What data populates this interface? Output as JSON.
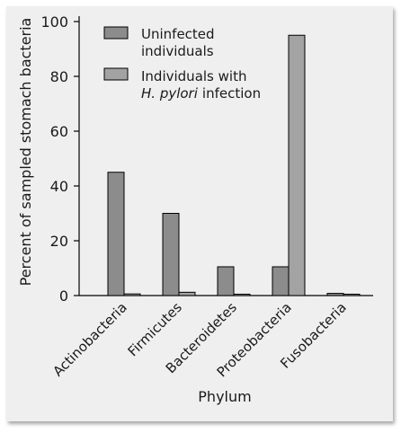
{
  "chart_data": {
    "type": "bar",
    "xlabel": "Phylum",
    "ylabel": "Percent of sampled stomach bacteria",
    "ylim": [
      0,
      100
    ],
    "yticks": [
      0,
      20,
      40,
      60,
      80,
      100
    ],
    "categories": [
      "Actinobacteria",
      "Firmicutes",
      "Bacteroidetes",
      "Proteobacteria",
      "Fusobacteria"
    ],
    "series": [
      {
        "name_lines": [
          "Uninfected",
          "individuals"
        ],
        "values": [
          45,
          30,
          10.5,
          10.5,
          0.8
        ],
        "color": "#8c8c8c"
      },
      {
        "name_lines": [
          "Individuals with",
          "H. pylori",
          "infection"
        ],
        "values": [
          0.6,
          1.2,
          0.5,
          95,
          0.5
        ],
        "color": "#a3a3a3"
      }
    ],
    "legend_position": "top-left",
    "grid": false
  }
}
